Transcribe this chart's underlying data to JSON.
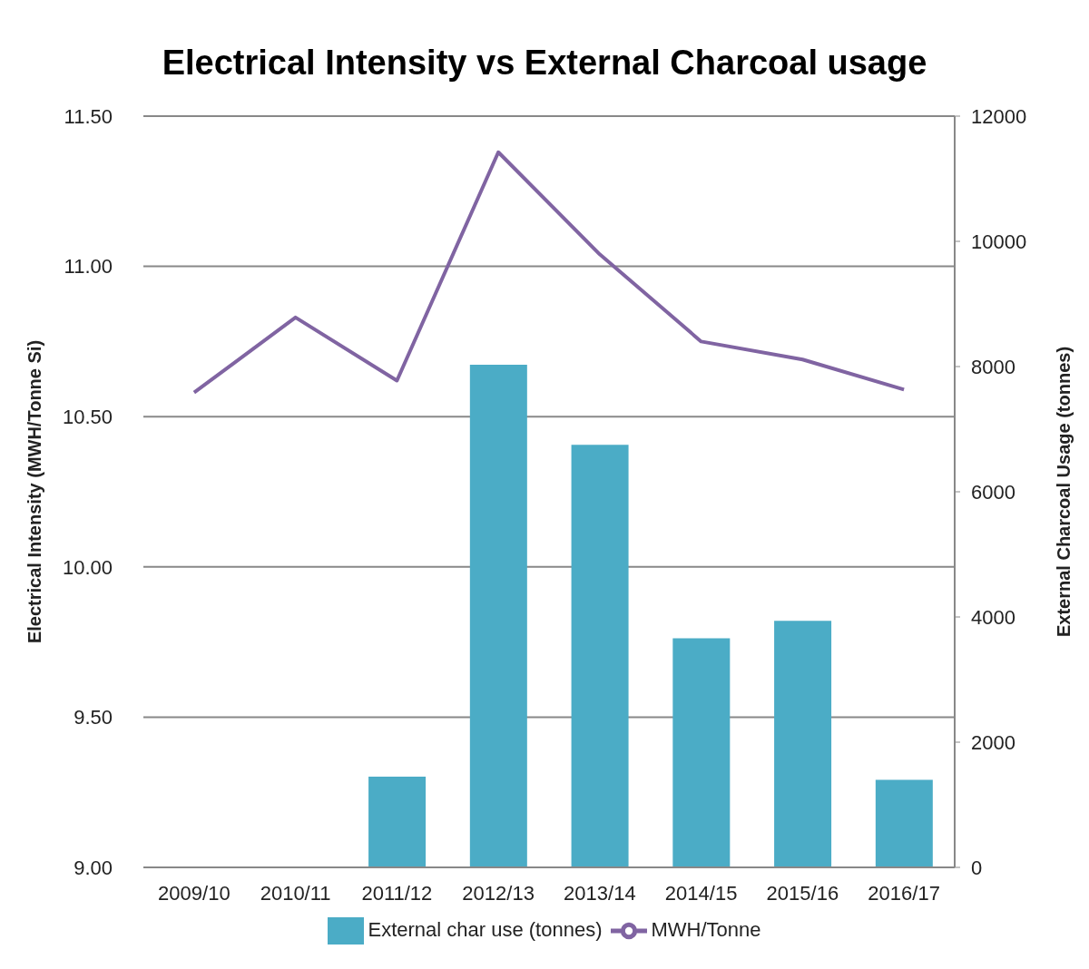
{
  "chart_data": {
    "type": "bar",
    "title": "Electrical Intensity vs External Charcoal usage",
    "ylabel": "Electrical Intensity (MWH/Tonne Si)",
    "y2label": "External Charcoal Usage (tonnes)",
    "categories": [
      "2009/10",
      "2010/11",
      "2011/12",
      "2012/13",
      "2013/14",
      "2014/15",
      "2015/16",
      "2016/17"
    ],
    "series": [
      {
        "name": "External char use (tonnes)",
        "axis": "y2",
        "color": "#4bacc6",
        "values": [
          0,
          0,
          1450,
          8030,
          6750,
          3660,
          3940,
          1400
        ]
      },
      {
        "name": "MWH/Tonne",
        "type": "line",
        "axis": "y",
        "color": "#8064a2",
        "values": [
          10.58,
          10.83,
          10.62,
          11.38,
          11.04,
          10.75,
          10.69,
          10.59
        ]
      }
    ],
    "ylim": [
      9,
      11.5
    ],
    "yticks": [
      {
        "value": 9,
        "label": "9.00"
      },
      {
        "value": 9.5,
        "label": "9.50"
      },
      {
        "value": 10,
        "label": "10.00"
      },
      {
        "value": 10.5,
        "label": "10.50"
      },
      {
        "value": 11,
        "label": "11.00"
      },
      {
        "value": 11.5,
        "label": "11.50"
      }
    ],
    "y2lim": [
      0,
      12000
    ],
    "y2ticks": [
      0,
      2000,
      4000,
      6000,
      8000,
      10000,
      12000
    ],
    "grid": "y",
    "legend": "bottom",
    "marker": "none"
  }
}
